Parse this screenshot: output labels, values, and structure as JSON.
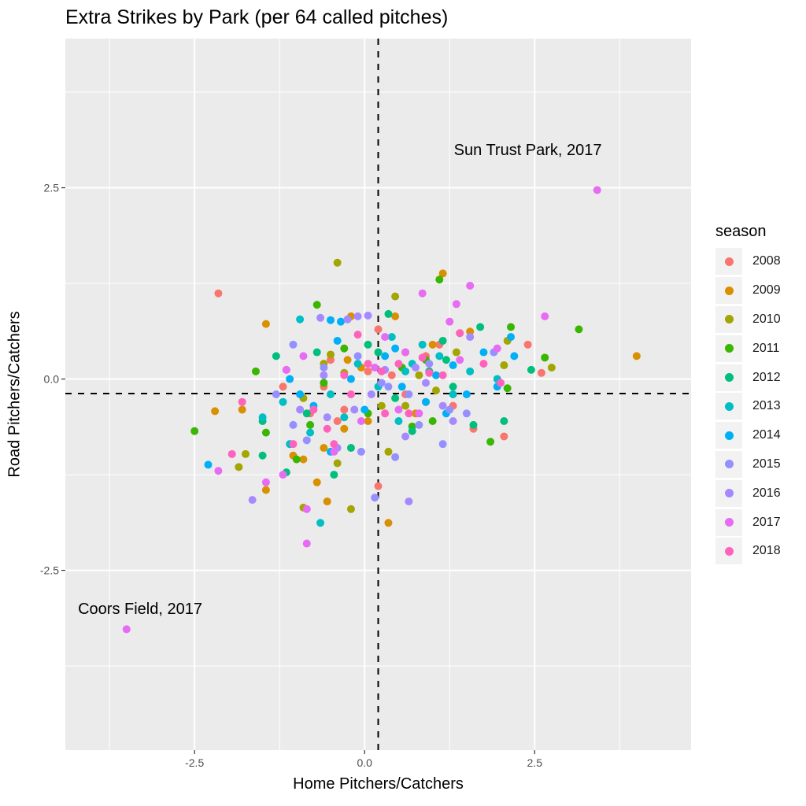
{
  "chart_data": {
    "type": "scatter",
    "title": "Extra Strikes by Park (per 64 called pitches)",
    "xlabel": "Home Pitchers/Catchers",
    "ylabel": "Road Pitchers/Catchers",
    "xlim": [
      -4.4,
      4.8
    ],
    "ylim": [
      -4.85,
      4.45
    ],
    "x_ticks": [
      "-2.5",
      "0.0",
      "2.5"
    ],
    "y_ticks": [
      "2.5",
      "0.0",
      "-2.5"
    ],
    "grid": true,
    "reference_lines": {
      "vertical_x": 0.2,
      "horizontal_y": -0.19,
      "style": "dashed"
    },
    "annotations": [
      {
        "text": "Sun Trust Park, 2017",
        "x": 2.4,
        "y": 3.0
      },
      {
        "text": "Coors Field, 2017",
        "x": -3.3,
        "y": -3.0
      }
    ],
    "legend": {
      "title": "season",
      "position": "right",
      "entries": [
        {
          "label": "2008",
          "color": "#F8766D"
        },
        {
          "label": "2009",
          "color": "#D89000"
        },
        {
          "label": "2010",
          "color": "#A3A500"
        },
        {
          "label": "2011",
          "color": "#39B600"
        },
        {
          "label": "2012",
          "color": "#00BF7D"
        },
        {
          "label": "2013",
          "color": "#00BFC4"
        },
        {
          "label": "2014",
          "color": "#00B0F6"
        },
        {
          "label": "2015",
          "color": "#9590FF"
        },
        {
          "label": "2016",
          "color": "#A58AFF"
        },
        {
          "label": "2017",
          "color": "#E76BF3"
        },
        {
          "label": "2018",
          "color": "#FF62BC"
        }
      ]
    },
    "series": [
      {
        "name": "2008",
        "points": [
          [
            -2.15,
            1.12
          ],
          [
            0.2,
            0.65
          ],
          [
            -1.15,
            0.12
          ],
          [
            2.4,
            0.45
          ],
          [
            2.6,
            0.08
          ],
          [
            1.6,
            -0.65
          ],
          [
            2.05,
            -0.75
          ],
          [
            0.2,
            -1.4
          ],
          [
            -1.2,
            -0.1
          ],
          [
            0.6,
            -0.2
          ],
          [
            -0.3,
            -0.4
          ],
          [
            1.1,
            0.45
          ],
          [
            -0.4,
            -0.55
          ],
          [
            0.9,
            0.3
          ],
          [
            -0.8,
            -0.45
          ],
          [
            0.05,
            0.1
          ],
          [
            -0.6,
            -0.1
          ],
          [
            1.3,
            -0.35
          ],
          [
            0.4,
            0.05
          ],
          [
            -0.5,
            0.25
          ]
        ]
      },
      {
        "name": "2009",
        "points": [
          [
            -1.45,
            0.72
          ],
          [
            1.15,
            1.38
          ],
          [
            4.0,
            0.3
          ],
          [
            -0.2,
            0.82
          ],
          [
            0.45,
            0.82
          ],
          [
            -2.2,
            -0.42
          ],
          [
            -1.45,
            -1.45
          ],
          [
            0.35,
            -1.88
          ],
          [
            -0.55,
            -1.6
          ],
          [
            -0.9,
            -1.05
          ],
          [
            -0.7,
            -1.35
          ],
          [
            -1.05,
            -1.0
          ],
          [
            1.0,
            0.45
          ],
          [
            0.6,
            0.35
          ],
          [
            -0.25,
            0.25
          ],
          [
            1.55,
            0.62
          ],
          [
            0.9,
            -0.3
          ],
          [
            -0.6,
            -0.9
          ],
          [
            -0.3,
            -0.65
          ],
          [
            0.05,
            -0.55
          ],
          [
            -1.8,
            -0.4
          ],
          [
            0.75,
            -0.45
          ],
          [
            -0.05,
            0.15
          ]
        ]
      },
      {
        "name": "2010",
        "points": [
          [
            -0.4,
            1.52
          ],
          [
            0.45,
            1.08
          ],
          [
            -0.5,
            0.32
          ],
          [
            2.75,
            0.15
          ],
          [
            -1.85,
            -1.15
          ],
          [
            -0.2,
            -1.7
          ],
          [
            -0.9,
            -1.68
          ],
          [
            -0.4,
            -1.1
          ],
          [
            1.35,
            0.35
          ],
          [
            2.05,
            0.18
          ],
          [
            0.35,
            -0.95
          ],
          [
            -1.75,
            -0.98
          ],
          [
            -0.3,
            0.08
          ],
          [
            0.6,
            -0.35
          ],
          [
            -0.9,
            -0.25
          ],
          [
            0.8,
            0.05
          ],
          [
            1.05,
            -0.15
          ],
          [
            -0.6,
            0.2
          ],
          [
            0.25,
            -0.35
          ],
          [
            2.1,
            0.5
          ]
        ]
      },
      {
        "name": "2011",
        "points": [
          [
            -0.7,
            0.97
          ],
          [
            3.15,
            0.65
          ],
          [
            -2.5,
            -0.68
          ],
          [
            1.1,
            1.3
          ],
          [
            2.65,
            0.28
          ],
          [
            2.1,
            -0.12
          ],
          [
            1.4,
            0.6
          ],
          [
            0.7,
            -0.62
          ],
          [
            -1.45,
            -0.7
          ],
          [
            -0.8,
            -0.6
          ],
          [
            -0.6,
            -0.05
          ],
          [
            -1.6,
            0.1
          ],
          [
            1.85,
            -0.82
          ],
          [
            0.9,
            0.25
          ],
          [
            -0.3,
            0.4
          ],
          [
            1.0,
            -0.55
          ],
          [
            0.05,
            -0.45
          ],
          [
            -1.0,
            -1.05
          ],
          [
            0.55,
            0.15
          ],
          [
            2.15,
            0.68
          ]
        ]
      },
      {
        "name": "2012",
        "points": [
          [
            -1.3,
            0.3
          ],
          [
            1.7,
            0.68
          ],
          [
            2.45,
            0.12
          ],
          [
            -1.5,
            -1.0
          ],
          [
            -0.45,
            -1.25
          ],
          [
            0.35,
            0.85
          ],
          [
            -1.15,
            -1.22
          ],
          [
            0.7,
            -0.68
          ],
          [
            2.05,
            -0.55
          ],
          [
            1.2,
            0.25
          ],
          [
            -0.85,
            -0.45
          ],
          [
            0.05,
            0.45
          ],
          [
            -0.2,
            -0.9
          ],
          [
            1.6,
            -0.6
          ],
          [
            0.95,
            0.1
          ],
          [
            -1.5,
            -0.55
          ],
          [
            0.45,
            -0.25
          ],
          [
            -0.7,
            0.35
          ],
          [
            1.3,
            -0.1
          ],
          [
            0.2,
            0.35
          ],
          [
            1.15,
            0.5
          ]
        ]
      },
      {
        "name": "2013",
        "points": [
          [
            -0.95,
            0.78
          ],
          [
            -0.65,
            -1.88
          ],
          [
            1.55,
            0.1
          ],
          [
            -1.1,
            -0.85
          ],
          [
            -1.5,
            -0.5
          ],
          [
            -0.5,
            -0.2
          ],
          [
            0.85,
            0.45
          ],
          [
            1.3,
            -0.2
          ],
          [
            0.5,
            -0.55
          ],
          [
            -0.1,
            0.2
          ],
          [
            0.2,
            -0.1
          ],
          [
            -0.8,
            -0.7
          ],
          [
            1.1,
            0.3
          ],
          [
            0.6,
            0.1
          ],
          [
            -0.3,
            -0.5
          ],
          [
            0.7,
            0.2
          ],
          [
            -1.2,
            -0.3
          ],
          [
            1.95,
            0.0
          ],
          [
            0.4,
            0.55
          ]
        ]
      },
      {
        "name": "2014",
        "points": [
          [
            -0.5,
            0.77
          ],
          [
            -0.35,
            0.75
          ],
          [
            -1.1,
            0.0
          ],
          [
            -0.2,
            0.0
          ],
          [
            1.3,
            0.18
          ],
          [
            2.15,
            0.55
          ],
          [
            1.95,
            -0.1
          ],
          [
            -2.3,
            -1.12
          ],
          [
            -0.5,
            -0.95
          ],
          [
            0.9,
            -0.3
          ],
          [
            1.75,
            0.35
          ],
          [
            0.55,
            -0.1
          ],
          [
            1.5,
            -0.2
          ],
          [
            -0.95,
            -0.2
          ],
          [
            0.3,
            0.3
          ],
          [
            -0.75,
            -0.35
          ],
          [
            1.05,
            0.05
          ],
          [
            0.0,
            -0.4
          ],
          [
            -0.4,
            0.5
          ],
          [
            1.2,
            -0.45
          ],
          [
            2.2,
            0.3
          ],
          [
            0.45,
            0.4
          ]
        ]
      },
      {
        "name": "2015",
        "points": [
          [
            -1.05,
            0.45
          ],
          [
            -0.6,
            0.15
          ],
          [
            0.15,
            -1.55
          ],
          [
            0.45,
            -1.02
          ],
          [
            1.15,
            -0.85
          ],
          [
            -0.85,
            -0.8
          ],
          [
            0.95,
            0.2
          ],
          [
            1.5,
            -0.45
          ],
          [
            -0.25,
            0.78
          ],
          [
            0.65,
            -0.2
          ],
          [
            -0.05,
            -0.95
          ],
          [
            1.9,
            0.35
          ],
          [
            -1.3,
            -0.2
          ],
          [
            0.35,
            -0.1
          ],
          [
            1.25,
            -0.4
          ],
          [
            -0.1,
            0.3
          ],
          [
            0.25,
            -0.05
          ],
          [
            0.8,
            -0.6
          ],
          [
            -1.05,
            -0.6
          ]
        ]
      },
      {
        "name": "2016",
        "points": [
          [
            -0.65,
            0.8
          ],
          [
            -0.1,
            0.82
          ],
          [
            0.05,
            0.83
          ],
          [
            -0.25,
            0.78
          ],
          [
            -1.65,
            -1.58
          ],
          [
            0.65,
            -1.6
          ],
          [
            0.6,
            -0.75
          ],
          [
            -0.4,
            -0.9
          ],
          [
            1.55,
            0.55
          ],
          [
            -0.95,
            -0.4
          ],
          [
            0.9,
            -0.05
          ],
          [
            1.15,
            -0.35
          ],
          [
            -0.55,
            -0.5
          ],
          [
            0.3,
            0.12
          ],
          [
            -0.15,
            -0.4
          ],
          [
            0.75,
            0.15
          ],
          [
            1.3,
            -0.55
          ],
          [
            0.1,
            -0.2
          ],
          [
            -0.6,
            0.05
          ]
        ]
      },
      {
        "name": "2017",
        "points": [
          [
            3.42,
            2.47
          ],
          [
            -3.5,
            -3.27
          ],
          [
            0.85,
            1.12
          ],
          [
            1.55,
            1.22
          ],
          [
            1.35,
            0.98
          ],
          [
            2.65,
            0.82
          ],
          [
            1.25,
            0.75
          ],
          [
            -1.45,
            -1.35
          ],
          [
            -2.15,
            -1.2
          ],
          [
            -0.85,
            -2.15
          ],
          [
            -0.85,
            -1.7
          ],
          [
            -0.45,
            -0.95
          ],
          [
            0.3,
            0.55
          ],
          [
            -0.9,
            0.3
          ],
          [
            0.6,
            0.35
          ],
          [
            1.4,
            0.25
          ],
          [
            -0.05,
            -0.55
          ],
          [
            0.15,
            0.15
          ],
          [
            0.8,
            -0.45
          ],
          [
            -1.2,
            -1.25
          ],
          [
            0.5,
            -0.4
          ],
          [
            -1.15,
            0.12
          ],
          [
            1.95,
            0.4
          ]
        ]
      },
      {
        "name": "2018",
        "points": [
          [
            -0.1,
            0.58
          ],
          [
            -1.95,
            -0.98
          ],
          [
            -1.8,
            -0.3
          ],
          [
            0.65,
            -0.45
          ],
          [
            -0.55,
            -0.65
          ],
          [
            0.95,
            0.08
          ],
          [
            -1.05,
            -0.85
          ],
          [
            0.3,
            -0.45
          ],
          [
            -0.3,
            0.05
          ],
          [
            1.75,
            0.2
          ],
          [
            0.05,
            0.2
          ],
          [
            -0.75,
            -0.4
          ],
          [
            1.15,
            0.05
          ],
          [
            0.5,
            0.2
          ],
          [
            -0.45,
            -0.85
          ],
          [
            0.85,
            0.28
          ],
          [
            -0.2,
            -0.2
          ],
          [
            1.4,
            0.6
          ],
          [
            2.0,
            -0.05
          ],
          [
            0.25,
            0.1
          ]
        ]
      }
    ]
  }
}
